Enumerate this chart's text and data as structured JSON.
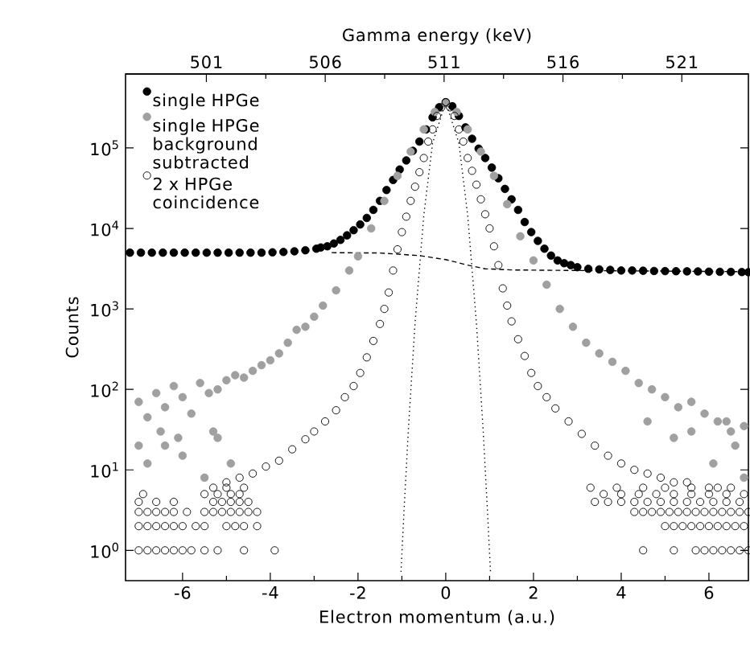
{
  "chart_data": {
    "type": "scatter",
    "xlabel": "Electron momentum (a.u.)",
    "ylabel": "Counts",
    "x2label": "Gamma energy (keV)",
    "xlim": [
      -7.3,
      6.9
    ],
    "xticks": [
      -6,
      -4,
      -2,
      0,
      2,
      4,
      6
    ],
    "x2lim": [
      497.6,
      523.8
    ],
    "x2ticks": [
      501,
      506,
      511,
      516,
      521
    ],
    "ylim": [
      0.42,
      830000
    ],
    "yticks": [
      {
        "value": 1,
        "label": "10$^{0}$"
      },
      {
        "value": 10,
        "label": "10$^{1}$"
      },
      {
        "value": 100,
        "label": "10$^{2}$"
      },
      {
        "value": 1000,
        "label": "10$^{3}$"
      },
      {
        "value": 10000,
        "label": "10$^{4}$"
      },
      {
        "value": 100000,
        "label": "10$^{5}$"
      }
    ],
    "log": "y",
    "legend": "top left",
    "marker": "circle",
    "series": [
      {
        "name": "single HPGe",
        "color": "#000000",
        "x": [
          -7.2,
          -6.95,
          -6.7,
          -6.45,
          -6.2,
          -5.95,
          -5.7,
          -5.45,
          -5.2,
          -4.95,
          -4.7,
          -4.45,
          -4.2,
          -3.95,
          -3.7,
          -3.45,
          -3.2,
          -2.95,
          -2.85,
          -2.7,
          -2.55,
          -2.4,
          -2.25,
          -2.1,
          -1.95,
          -1.8,
          -1.65,
          -1.5,
          -1.35,
          -1.2,
          -1.05,
          -0.9,
          -0.75,
          -0.6,
          -0.45,
          -0.3,
          -0.15,
          0,
          0.15,
          0.3,
          0.45,
          0.6,
          0.75,
          0.9,
          1.05,
          1.2,
          1.35,
          1.5,
          1.65,
          1.8,
          1.95,
          2.1,
          2.25,
          2.4,
          2.55,
          2.7,
          2.85,
          3.0,
          3.25,
          3.5,
          3.75,
          4.0,
          4.25,
          4.5,
          4.75,
          5.0,
          5.25,
          5.5,
          5.75,
          6.0,
          6.25,
          6.5,
          6.75,
          6.9
        ],
        "values": [
          5000,
          5000,
          5000,
          5000,
          5000,
          5000,
          5000,
          5000,
          5000,
          5000,
          5000,
          5000,
          5000,
          5050,
          5100,
          5200,
          5350,
          5600,
          5800,
          6000,
          6500,
          7200,
          8200,
          9500,
          11200,
          13500,
          17000,
          22000,
          30000,
          40000,
          54000,
          70000,
          92000,
          120000,
          170000,
          240000,
          320000,
          370000,
          330000,
          250000,
          180000,
          130000,
          98000,
          75000,
          57000,
          42000,
          31000,
          23000,
          17000,
          12000,
          9000,
          7000,
          5600,
          4600,
          4000,
          3700,
          3500,
          3300,
          3150,
          3100,
          3050,
          3000,
          3000,
          2980,
          2960,
          2950,
          2940,
          2930,
          2920,
          2900,
          2890,
          2880,
          2870,
          2860
        ]
      },
      {
        "name": "single HPGe background subtracted",
        "color": "#a0a0a0",
        "x": [
          -7.0,
          -6.8,
          -6.6,
          -6.4,
          -6.2,
          -6.0,
          -5.8,
          -5.6,
          -5.4,
          -5.2,
          -5.0,
          -4.8,
          -4.6,
          -4.4,
          -4.2,
          -4.0,
          -3.8,
          -3.6,
          -3.4,
          -3.2,
          -3.0,
          -2.8,
          -2.5,
          -2.2,
          -2.0,
          -1.7,
          -1.4,
          -1.1,
          -0.8,
          -0.5,
          -0.25,
          0,
          0.25,
          0.5,
          0.8,
          1.1,
          1.4,
          1.7,
          2.0,
          2.3,
          2.6,
          2.9,
          3.2,
          3.5,
          3.8,
          4.1,
          4.4,
          4.7,
          5.0,
          5.3,
          5.6,
          5.9,
          6.2,
          6.5,
          6.8,
          -7.0,
          -6.8,
          -6.5,
          -6.4,
          -6.1,
          -6.0,
          -5.5,
          -5.3,
          -5.2,
          -4.9,
          4.6,
          5.6,
          6.1,
          6.6,
          6.4,
          5.2,
          6.8
        ],
        "values": [
          70,
          45,
          90,
          60,
          110,
          80,
          50,
          120,
          90,
          100,
          130,
          150,
          140,
          170,
          200,
          230,
          280,
          380,
          550,
          600,
          800,
          1100,
          1700,
          3000,
          4500,
          10000,
          22000,
          45000,
          90000,
          170000,
          280000,
          360000,
          280000,
          170000,
          90000,
          45000,
          20000,
          8000,
          4000,
          2000,
          1000,
          600,
          380,
          280,
          220,
          170,
          120,
          100,
          80,
          60,
          70,
          50,
          40,
          30,
          35,
          20,
          12,
          30,
          20,
          25,
          15,
          8,
          30,
          25,
          12,
          40,
          30,
          12,
          20,
          40,
          25,
          8
        ]
      },
      {
        "name": "2 x HPGe coincidence",
        "marker": "open circle",
        "color": "#000000",
        "x": [
          -5.3,
          -5.0,
          -4.7,
          -4.4,
          -4.1,
          -3.8,
          -3.5,
          -3.2,
          -3.0,
          -2.75,
          -2.5,
          -2.3,
          -2.1,
          -1.95,
          -1.8,
          -1.65,
          -1.5,
          -1.4,
          -1.3,
          -1.2,
          -1.1,
          -1.0,
          -0.9,
          -0.8,
          -0.7,
          -0.6,
          -0.5,
          -0.4,
          -0.3,
          -0.2,
          -0.1,
          0,
          0.1,
          0.2,
          0.3,
          0.4,
          0.5,
          0.6,
          0.7,
          0.8,
          0.9,
          1.0,
          1.1,
          1.2,
          1.3,
          1.4,
          1.5,
          1.65,
          1.8,
          1.95,
          2.1,
          2.3,
          2.5,
          2.8,
          3.1,
          3.4,
          3.7,
          4.0,
          4.3,
          4.6,
          4.9,
          5.2,
          5.5,
          6.0,
          6.5,
          -7.0,
          -6.8,
          -6.6,
          -6.4,
          -6.2,
          -6.0,
          -5.8,
          -5.5,
          -5.2,
          -4.6,
          -3.9,
          4.5,
          5.2,
          5.7,
          5.9,
          6.1,
          6.3,
          6.5,
          6.7,
          6.9,
          -7.0,
          -6.8,
          -6.6,
          -6.4,
          -6.2,
          -6.0,
          -5.7,
          -5.5,
          -5.0,
          -4.8,
          -4.6,
          -4.3,
          5.0,
          5.2,
          5.4,
          5.6,
          5.8,
          6.0,
          6.2,
          6.4,
          6.6,
          6.8,
          -7.0,
          -6.8,
          -6.6,
          -6.4,
          -6.2,
          -5.9,
          -5.5,
          -5.3,
          -5.1,
          -4.9,
          -4.7,
          -4.5,
          -4.3,
          4.3,
          4.5,
          4.7,
          4.9,
          5.1,
          5.3,
          5.5,
          5.7,
          5.9,
          6.1,
          6.3,
          6.5,
          6.7,
          6.9,
          -7.0,
          -6.6,
          -6.2,
          -5.3,
          -5.1,
          -4.9,
          -4.7,
          -4.5,
          3.4,
          3.7,
          4.0,
          4.3,
          4.6,
          4.9,
          5.2,
          5.5,
          5.8,
          6.1,
          6.4,
          6.7,
          -6.9,
          -5.5,
          -5.2,
          -4.9,
          -4.7,
          3.6,
          4.0,
          4.4,
          4.8,
          5.2,
          5.6,
          6.0,
          6.4,
          6.8,
          -5.0,
          -4.6,
          3.3,
          3.9,
          4.5,
          5.0,
          5.6,
          6.2
        ],
        "values": [
          6,
          7,
          8,
          9,
          11,
          13,
          18,
          24,
          30,
          40,
          55,
          80,
          110,
          160,
          250,
          400,
          650,
          1000,
          1600,
          3000,
          5500,
          9000,
          14000,
          22000,
          33000,
          50000,
          75000,
          120000,
          170000,
          250000,
          320000,
          370000,
          320000,
          250000,
          170000,
          120000,
          75000,
          52000,
          35000,
          23000,
          15000,
          10000,
          6000,
          3500,
          1800,
          1100,
          700,
          420,
          260,
          160,
          110,
          80,
          58,
          40,
          28,
          20,
          15,
          12,
          10,
          9,
          8,
          7,
          7,
          6,
          6,
          1,
          1,
          1,
          1,
          1,
          1,
          1,
          1,
          1,
          1,
          1,
          1,
          1,
          1,
          1,
          1,
          1,
          1,
          1,
          1,
          2,
          2,
          2,
          2,
          2,
          2,
          2,
          2,
          2,
          2,
          2,
          2,
          2,
          2,
          2,
          2,
          2,
          2,
          2,
          2,
          2,
          2,
          3,
          3,
          3,
          3,
          3,
          3,
          3,
          3,
          3,
          3,
          3,
          3,
          3,
          3,
          3,
          3,
          3,
          3,
          3,
          3,
          3,
          3,
          3,
          3,
          3,
          3,
          3,
          4,
          4,
          4,
          4,
          4,
          4,
          4,
          4,
          4,
          4,
          4,
          4,
          4,
          4,
          4,
          4,
          4,
          4,
          4,
          4,
          5,
          5,
          5,
          5,
          5,
          5,
          5,
          5,
          5,
          5,
          5,
          5,
          5,
          5,
          6,
          6,
          6,
          6,
          6,
          6,
          6,
          6
        ]
      },
      {
        "type": "line",
        "marker": "none",
        "line_style": "dashed",
        "color": "#000000",
        "x": [
          -2.6,
          -1.5,
          -0.6,
          0,
          0.5,
          0.9,
          1.5,
          3.0,
          6.9
        ],
        "values": [
          5000,
          4950,
          4600,
          4100,
          3500,
          3150,
          3050,
          3000,
          2900
        ]
      },
      {
        "type": "line",
        "marker": "none",
        "line_style": "dotted",
        "color": "#000000",
        "x": [
          -1.02,
          -0.95,
          -0.85,
          -0.7,
          -0.5,
          -0.3,
          0,
          0.3,
          0.5,
          0.7,
          0.85,
          0.95,
          1.02
        ],
        "values": [
          0.54,
          3.2,
          33,
          660,
          14600,
          115000,
          370000,
          115000,
          14600,
          660,
          33,
          3.2,
          0.54
        ]
      }
    ]
  }
}
